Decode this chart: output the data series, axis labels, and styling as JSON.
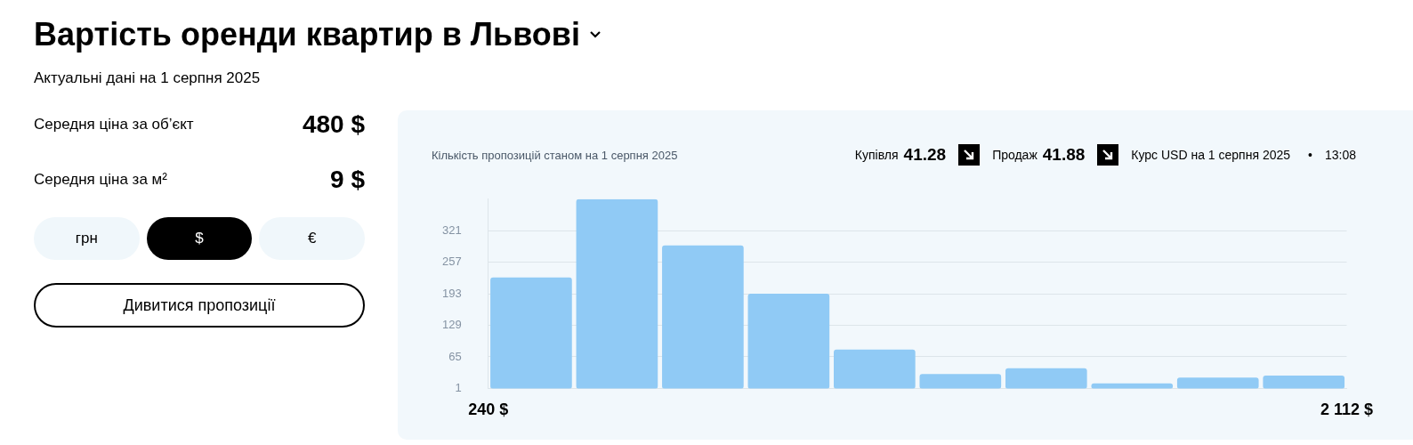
{
  "chart_data": [
    {
      "type": "other",
      "title": "Вартість оренди квартир в Львові",
      "subtitle": "Актуальні дані на 1 серпня 2025",
      "annotations": [
        "Середня ціна за об’єкт",
        "480 $",
        "Середня ціна за м²",
        "9 $",
        "грн",
        "$",
        "€",
        "Дивитися пропозиції"
      ]
    },
    {
      "type": "histogram",
      "title": "Кількість пропозицій станом на 1 серпня 2025",
      "bins": [
        240,
        427.2,
        614.4,
        801.6,
        988.8,
        1176,
        1363.2,
        1550.4,
        1737.6,
        1924.8,
        2112
      ],
      "values": [
        226,
        385,
        291,
        193,
        80,
        30,
        42,
        11,
        23,
        27
      ],
      "color": "#90caf5",
      "xlim": [
        240,
        2112
      ],
      "xticks": [
        {
          "value": 240,
          "label": "240 $"
        },
        {
          "value": 2112,
          "label": "2 112 $"
        }
      ],
      "ylim": [
        1,
        385
      ],
      "yticks": [
        1,
        65,
        129,
        193,
        257,
        321
      ],
      "grid": "y",
      "legend": false,
      "annotations": [
        "Купівля",
        "41.28",
        "Продаж",
        "41.88",
        "Курс USD на 1 серпня 2025",
        "•",
        "13:08"
      ]
    }
  ]
}
